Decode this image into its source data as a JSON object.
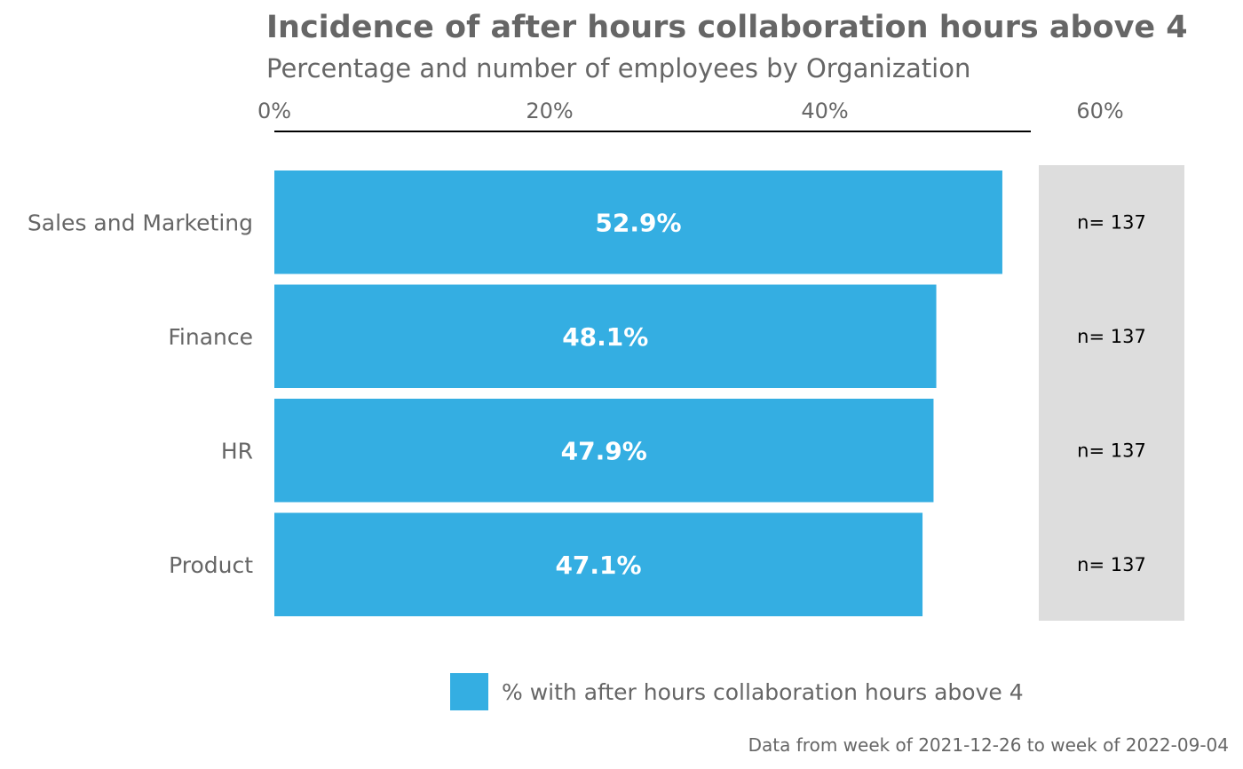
{
  "chart_data": {
    "type": "bar",
    "orientation": "horizontal",
    "title": "Incidence of after hours collaboration hours above 4",
    "subtitle": "Percentage and number of employees by Organization",
    "categories": [
      "Sales and Marketing",
      "Finance",
      "HR",
      "Product"
    ],
    "series": [
      {
        "name": "% with after hours collaboration hours above 4",
        "values": [
          52.9,
          48.1,
          47.9,
          47.1
        ],
        "labels": [
          "52.9%",
          "48.1%",
          "47.9%",
          "47.1%"
        ],
        "color": "#34AEE2"
      }
    ],
    "x_ticks": [
      {
        "value": 0,
        "label": "0%"
      },
      {
        "value": 20,
        "label": "20%"
      },
      {
        "value": 40,
        "label": "40%"
      },
      {
        "value": 60,
        "label": "60%"
      }
    ],
    "xlim": [
      0,
      60
    ],
    "xlabel": "",
    "ylabel": "",
    "counts": [
      "n= 137",
      "n= 137",
      "n= 137",
      "n= 137"
    ],
    "count_panel_color": "#DDDDDD",
    "axis_position": "top",
    "grid": false,
    "legend_position": "bottom",
    "caption": "Data from week of 2021-12-26 to week of 2022-09-04",
    "colors": {
      "bar": "#34AEE2",
      "text": "#666666",
      "bar_label": "#ffffff",
      "count_text": "#000000",
      "axis_line": "#000000"
    }
  }
}
